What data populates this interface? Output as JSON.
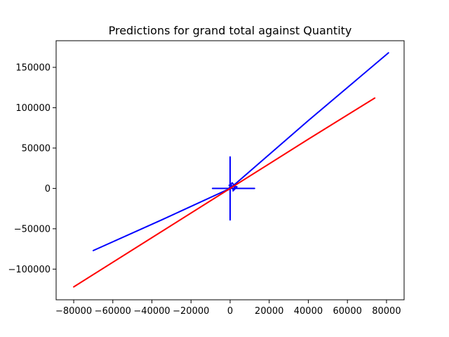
{
  "chart_data": {
    "type": "line",
    "title": "Predictions for grand total against Quantity",
    "xlabel": "",
    "ylabel": "",
    "xlim": [
      -89000,
      89000
    ],
    "ylim": [
      -138000,
      183000
    ],
    "grid": false,
    "legend": "none",
    "x_ticks": [
      -80000,
      -60000,
      -40000,
      -20000,
      0,
      20000,
      40000,
      60000,
      80000
    ],
    "x_tick_labels": [
      "−80000",
      "−60000",
      "−40000",
      "−20000",
      "0",
      "20000",
      "40000",
      "60000",
      "80000"
    ],
    "y_ticks": [
      -100000,
      -50000,
      0,
      50000,
      100000,
      150000
    ],
    "y_tick_labels": [
      "−100000",
      "−50000",
      "0",
      "50000",
      "100000",
      "150000"
    ],
    "series": [
      {
        "color": "#0000ff",
        "segments": [
          [
            [
              -70000,
              -77000
            ],
            [
              -35000,
              -39000
            ],
            [
              0,
              0
            ],
            [
              40000,
              84000
            ],
            [
              81000,
              168000
            ]
          ],
          [
            [
              0,
              -39000
            ],
            [
              0,
              39000
            ]
          ],
          [
            [
              -9000,
              0
            ],
            [
              12500,
              0
            ]
          ],
          [
            [
              -1000,
              -2000
            ],
            [
              1000,
              7000
            ],
            [
              2500,
              3000
            ],
            [
              1500,
              -3000
            ],
            [
              3500,
              2000
            ],
            [
              -500,
              4000
            ],
            [
              1500,
              -1000
            ]
          ]
        ]
      },
      {
        "color": "#ff0000",
        "segments": [
          [
            [
              -80000,
              -122000
            ],
            [
              -40000,
              -61000
            ],
            [
              0,
              0
            ],
            [
              40000,
              61000
            ],
            [
              74000,
              112000
            ]
          ]
        ]
      }
    ]
  }
}
